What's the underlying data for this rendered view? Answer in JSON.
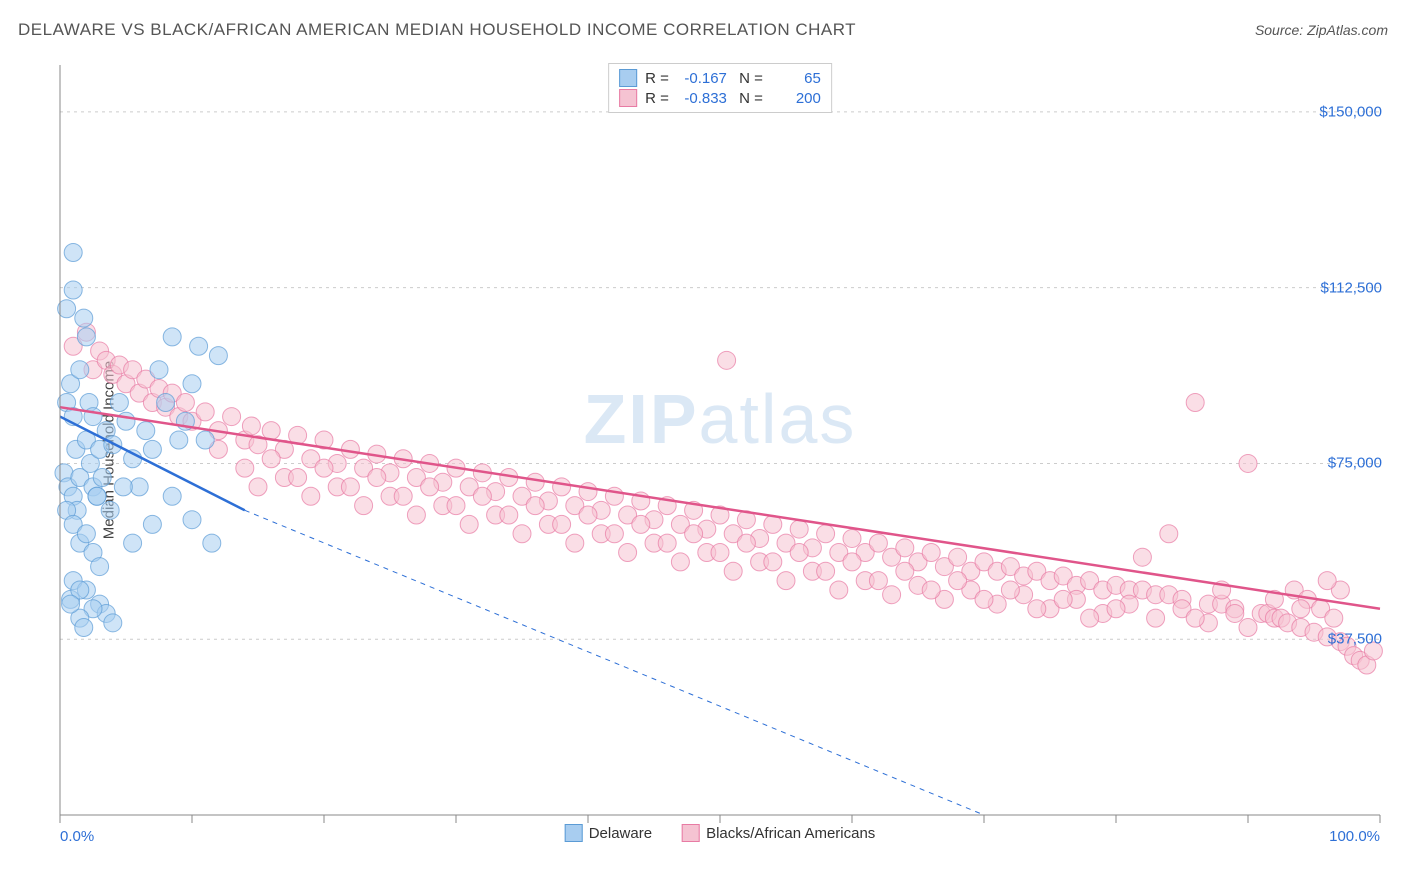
{
  "header": {
    "title": "DELAWARE VS BLACK/AFRICAN AMERICAN MEDIAN HOUSEHOLD INCOME CORRELATION CHART",
    "source_label": "Source:",
    "source_value": "ZipAtlas.com"
  },
  "chart": {
    "type": "scatter",
    "watermark": "ZIPatlas",
    "ylabel": "Median Household Income",
    "background_color": "#ffffff",
    "grid_color": "#cccccc",
    "axis_color": "#888888",
    "xlim": [
      0,
      100
    ],
    "ylim": [
      0,
      160000
    ],
    "xtick_labels": {
      "left": "0.0%",
      "right": "100.0%"
    },
    "xtick_positions": [
      0,
      10,
      20,
      30,
      40,
      50,
      60,
      70,
      80,
      90,
      100
    ],
    "yticks": [
      {
        "v": 37500,
        "label": "$37,500"
      },
      {
        "v": 75000,
        "label": "$75,000"
      },
      {
        "v": 112500,
        "label": "$112,500"
      },
      {
        "v": 150000,
        "label": "$150,000"
      }
    ],
    "series": [
      {
        "name": "Delaware",
        "color_fill": "#a8cdf0",
        "color_stroke": "#5b9bd5",
        "swatch_fill": "#a8cdf0",
        "swatch_border": "#5b9bd5",
        "marker_radius": 9,
        "fill_opacity": 0.55,
        "R": "-0.167",
        "N": "65",
        "regression": {
          "solid": {
            "x1": 0,
            "y1": 85000,
            "x2": 14,
            "y2": 65000
          },
          "dashed": {
            "x1": 14,
            "y1": 65000,
            "x2": 70,
            "y2": 0
          },
          "color": "#2d6fd6",
          "width": 2.5
        },
        "points": [
          [
            0.5,
            88000
          ],
          [
            0.8,
            92000
          ],
          [
            1.0,
            85000
          ],
          [
            1.2,
            78000
          ],
          [
            1.5,
            95000
          ],
          [
            1.0,
            120000
          ],
          [
            2.0,
            102000
          ],
          [
            2.2,
            88000
          ],
          [
            1.8,
            106000
          ],
          [
            2.5,
            85000
          ],
          [
            0.3,
            73000
          ],
          [
            0.6,
            70000
          ],
          [
            1.0,
            68000
          ],
          [
            1.3,
            65000
          ],
          [
            1.5,
            72000
          ],
          [
            2.0,
            80000
          ],
          [
            2.3,
            75000
          ],
          [
            2.5,
            70000
          ],
          [
            2.8,
            68000
          ],
          [
            3.0,
            78000
          ],
          [
            3.2,
            72000
          ],
          [
            3.5,
            82000
          ],
          [
            4.0,
            79000
          ],
          [
            4.5,
            88000
          ],
          [
            5.0,
            84000
          ],
          [
            5.5,
            76000
          ],
          [
            6.0,
            70000
          ],
          [
            6.5,
            82000
          ],
          [
            7.0,
            78000
          ],
          [
            7.5,
            95000
          ],
          [
            8.0,
            88000
          ],
          [
            8.5,
            102000
          ],
          [
            9.0,
            80000
          ],
          [
            9.5,
            84000
          ],
          [
            10.0,
            92000
          ],
          [
            10.5,
            100000
          ],
          [
            12.0,
            98000
          ],
          [
            0.5,
            65000
          ],
          [
            1.0,
            62000
          ],
          [
            1.5,
            58000
          ],
          [
            2.0,
            60000
          ],
          [
            2.5,
            56000
          ],
          [
            3.0,
            53000
          ],
          [
            1.0,
            50000
          ],
          [
            2.0,
            48000
          ],
          [
            3.0,
            45000
          ],
          [
            3.5,
            43000
          ],
          [
            4.0,
            41000
          ],
          [
            2.5,
            44000
          ],
          [
            1.5,
            42000
          ],
          [
            0.8,
            46000
          ],
          [
            1.8,
            40000
          ],
          [
            2.8,
            68000
          ],
          [
            3.8,
            65000
          ],
          [
            4.8,
            70000
          ],
          [
            11.5,
            58000
          ],
          [
            10.0,
            63000
          ],
          [
            8.5,
            68000
          ],
          [
            7.0,
            62000
          ],
          [
            5.5,
            58000
          ],
          [
            0.5,
            108000
          ],
          [
            1.0,
            112000
          ],
          [
            1.5,
            48000
          ],
          [
            0.8,
            45000
          ],
          [
            11.0,
            80000
          ]
        ]
      },
      {
        "name": "Blacks/African Americans",
        "color_fill": "#f5c3d2",
        "color_stroke": "#e87ba4",
        "swatch_fill": "#f5c3d2",
        "swatch_border": "#e87ba4",
        "marker_radius": 9,
        "fill_opacity": 0.55,
        "R": "-0.833",
        "N": "200",
        "regression": {
          "solid": {
            "x1": 0,
            "y1": 87000,
            "x2": 100,
            "y2": 44000
          },
          "color": "#e0558a",
          "width": 2.5
        },
        "points": [
          [
            1,
            100000
          ],
          [
            2,
            103000
          ],
          [
            3,
            99000
          ],
          [
            2.5,
            95000
          ],
          [
            3.5,
            97000
          ],
          [
            4,
            94000
          ],
          [
            4.5,
            96000
          ],
          [
            5,
            92000
          ],
          [
            5.5,
            95000
          ],
          [
            6,
            90000
          ],
          [
            6.5,
            93000
          ],
          [
            7,
            88000
          ],
          [
            7.5,
            91000
          ],
          [
            8,
            87000
          ],
          [
            8.5,
            90000
          ],
          [
            9,
            85000
          ],
          [
            9.5,
            88000
          ],
          [
            10,
            84000
          ],
          [
            11,
            86000
          ],
          [
            12,
            82000
          ],
          [
            13,
            85000
          ],
          [
            14,
            80000
          ],
          [
            14.5,
            83000
          ],
          [
            15,
            79000
          ],
          [
            16,
            82000
          ],
          [
            17,
            78000
          ],
          [
            18,
            81000
          ],
          [
            19,
            76000
          ],
          [
            20,
            80000
          ],
          [
            21,
            75000
          ],
          [
            22,
            78000
          ],
          [
            23,
            74000
          ],
          [
            24,
            77000
          ],
          [
            25,
            73000
          ],
          [
            26,
            76000
          ],
          [
            27,
            72000
          ],
          [
            28,
            75000
          ],
          [
            29,
            71000
          ],
          [
            30,
            74000
          ],
          [
            31,
            70000
          ],
          [
            32,
            73000
          ],
          [
            33,
            69000
          ],
          [
            34,
            72000
          ],
          [
            35,
            68000
          ],
          [
            36,
            71000
          ],
          [
            37,
            67000
          ],
          [
            38,
            70000
          ],
          [
            39,
            66000
          ],
          [
            40,
            69000
          ],
          [
            41,
            65000
          ],
          [
            42,
            68000
          ],
          [
            43,
            64000
          ],
          [
            44,
            67000
          ],
          [
            45,
            63000
          ],
          [
            46,
            66000
          ],
          [
            47,
            62000
          ],
          [
            48,
            65000
          ],
          [
            49,
            61000
          ],
          [
            50,
            64000
          ],
          [
            50.5,
            97000
          ],
          [
            51,
            60000
          ],
          [
            52,
            63000
          ],
          [
            53,
            59000
          ],
          [
            54,
            62000
          ],
          [
            55,
            58000
          ],
          [
            56,
            61000
          ],
          [
            57,
            57000
          ],
          [
            58,
            60000
          ],
          [
            59,
            56000
          ],
          [
            60,
            59000
          ],
          [
            61,
            56000
          ],
          [
            62,
            58000
          ],
          [
            63,
            55000
          ],
          [
            64,
            57000
          ],
          [
            65,
            54000
          ],
          [
            66,
            56000
          ],
          [
            67,
            53000
          ],
          [
            68,
            55000
          ],
          [
            69,
            52000
          ],
          [
            70,
            54000
          ],
          [
            71,
            52000
          ],
          [
            72,
            53000
          ],
          [
            73,
            51000
          ],
          [
            74,
            52000
          ],
          [
            75,
            50000
          ],
          [
            76,
            51000
          ],
          [
            77,
            49000
          ],
          [
            78,
            50000
          ],
          [
            79,
            48000
          ],
          [
            80,
            49000
          ],
          [
            81,
            48000
          ],
          [
            82,
            48000
          ],
          [
            83,
            47000
          ],
          [
            84,
            47000
          ],
          [
            85,
            46000
          ],
          [
            86,
            88000
          ],
          [
            87,
            45000
          ],
          [
            88,
            45000
          ],
          [
            89,
            44000
          ],
          [
            90,
            75000
          ],
          [
            91,
            43000
          ],
          [
            91.5,
            43000
          ],
          [
            92,
            42000
          ],
          [
            92.5,
            42000
          ],
          [
            93,
            41000
          ],
          [
            93.5,
            48000
          ],
          [
            94,
            40000
          ],
          [
            94.5,
            46000
          ],
          [
            95,
            39000
          ],
          [
            95.5,
            44000
          ],
          [
            96,
            38000
          ],
          [
            96.5,
            42000
          ],
          [
            97,
            37000
          ],
          [
            97.5,
            36000
          ],
          [
            98,
            34000
          ],
          [
            98.5,
            33000
          ],
          [
            99,
            32000
          ],
          [
            99.5,
            35000
          ],
          [
            97,
            48000
          ],
          [
            96,
            50000
          ],
          [
            15,
            70000
          ],
          [
            17,
            72000
          ],
          [
            19,
            68000
          ],
          [
            21,
            70000
          ],
          [
            23,
            66000
          ],
          [
            25,
            68000
          ],
          [
            27,
            64000
          ],
          [
            29,
            66000
          ],
          [
            31,
            62000
          ],
          [
            33,
            64000
          ],
          [
            35,
            60000
          ],
          [
            37,
            62000
          ],
          [
            39,
            58000
          ],
          [
            41,
            60000
          ],
          [
            43,
            56000
          ],
          [
            45,
            58000
          ],
          [
            47,
            54000
          ],
          [
            49,
            56000
          ],
          [
            51,
            52000
          ],
          [
            53,
            54000
          ],
          [
            55,
            50000
          ],
          [
            57,
            52000
          ],
          [
            59,
            48000
          ],
          [
            61,
            50000
          ],
          [
            63,
            47000
          ],
          [
            65,
            49000
          ],
          [
            67,
            46000
          ],
          [
            69,
            48000
          ],
          [
            71,
            45000
          ],
          [
            73,
            47000
          ],
          [
            75,
            44000
          ],
          [
            77,
            46000
          ],
          [
            79,
            43000
          ],
          [
            81,
            45000
          ],
          [
            83,
            42000
          ],
          [
            85,
            44000
          ],
          [
            87,
            41000
          ],
          [
            89,
            43000
          ],
          [
            12,
            78000
          ],
          [
            14,
            74000
          ],
          [
            16,
            76000
          ],
          [
            18,
            72000
          ],
          [
            20,
            74000
          ],
          [
            22,
            70000
          ],
          [
            24,
            72000
          ],
          [
            26,
            68000
          ],
          [
            28,
            70000
          ],
          [
            30,
            66000
          ],
          [
            32,
            68000
          ],
          [
            34,
            64000
          ],
          [
            36,
            66000
          ],
          [
            38,
            62000
          ],
          [
            40,
            64000
          ],
          [
            42,
            60000
          ],
          [
            44,
            62000
          ],
          [
            46,
            58000
          ],
          [
            48,
            60000
          ],
          [
            50,
            56000
          ],
          [
            52,
            58000
          ],
          [
            54,
            54000
          ],
          [
            56,
            56000
          ],
          [
            58,
            52000
          ],
          [
            60,
            54000
          ],
          [
            62,
            50000
          ],
          [
            64,
            52000
          ],
          [
            66,
            48000
          ],
          [
            68,
            50000
          ],
          [
            70,
            46000
          ],
          [
            72,
            48000
          ],
          [
            74,
            44000
          ],
          [
            76,
            46000
          ],
          [
            78,
            42000
          ],
          [
            80,
            44000
          ],
          [
            82,
            55000
          ],
          [
            84,
            60000
          ],
          [
            86,
            42000
          ],
          [
            88,
            48000
          ],
          [
            90,
            40000
          ],
          [
            92,
            46000
          ],
          [
            94,
            44000
          ]
        ]
      }
    ]
  }
}
